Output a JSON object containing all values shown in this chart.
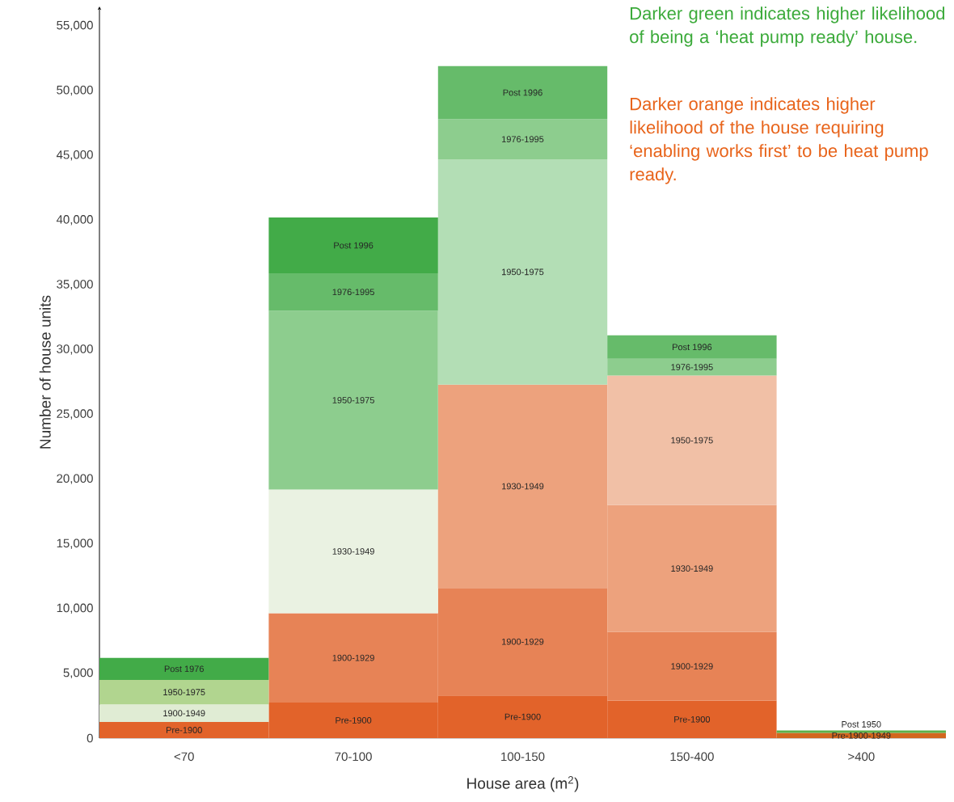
{
  "chart_data": {
    "type": "bar",
    "stacked": true,
    "xlabel": "House area (m$^{2}$)",
    "ylabel": "Number of house units",
    "categories": [
      "<70",
      "70-100",
      "100-150",
      "150-400",
      ">400"
    ],
    "ylim": [
      0,
      56500
    ],
    "yticks": [
      0,
      {
        "value": 5000,
        "label": "5,000"
      },
      {
        "value": 10000,
        "label": "10,000"
      },
      {
        "value": 15000,
        "label": "15,000"
      },
      {
        "value": 20000,
        "label": "20,000"
      },
      {
        "value": 25000,
        "label": "25,000"
      },
      {
        "value": 30000,
        "label": "30,000"
      },
      {
        "value": 35000,
        "label": "35,000"
      },
      {
        "value": 40000,
        "label": "40,000"
      },
      {
        "value": 45000,
        "label": "45,000"
      },
      {
        "value": 50000,
        "label": "50,000"
      },
      {
        "value": 55000,
        "label": "55,000"
      }
    ],
    "series": [
      {
        "values": [
          1250,
          2750,
          3300,
          2900,
          400
        ],
        "colors": [
          "#e2632a",
          "#e2632a",
          "#e2632a",
          "#e2632a",
          "#d2671e"
        ],
        "value_labels": [
          "Pre-1900",
          "Pre-1900",
          "Pre-1900",
          "Pre-1900",
          "Pre-1900-1949"
        ]
      },
      {
        "values": [
          1350,
          6900,
          8300,
          5300,
          200
        ],
        "colors": [
          "#e0ecd4",
          "#e78356",
          "#e78356",
          "#e78356",
          "#5cb04a"
        ],
        "value_labels": [
          "1900-1949",
          "1900-1929",
          "1900-1929",
          "1900-1929",
          "Post 1950"
        ]
      },
      {
        "values": [
          1900,
          9550,
          15700,
          9800,
          null
        ],
        "colors": [
          "#b1d58f",
          "#eaf2e2",
          "#eda27d",
          "#eda27d",
          null
        ],
        "value_labels": [
          "1950-1975",
          "1930-1949",
          "1930-1949",
          "1930-1949",
          null
        ]
      },
      {
        "values": [
          1700,
          13800,
          17400,
          10000,
          null
        ],
        "colors": [
          "#42ab48",
          "#8dcd8e",
          "#b3deb5",
          "#f1c0a6",
          null
        ],
        "value_labels": [
          "Post 1976",
          "1950-1975",
          "1950-1975",
          "1950-1975",
          null
        ]
      },
      {
        "values": [
          null,
          2900,
          3100,
          1300,
          null
        ],
        "colors": [
          null,
          "#66bb6a",
          "#8dcd8e",
          "#8dcd8e",
          null
        ],
        "value_labels": [
          null,
          "1976-1995",
          "1976-1995",
          "1976-1995",
          null
        ]
      },
      {
        "values": [
          null,
          4300,
          4100,
          1800,
          null
        ],
        "colors": [
          null,
          "#42ab48",
          "#66bb6a",
          "#66bb6a",
          null
        ],
        "value_labels": [
          null,
          "Post 1996",
          "Post 1996",
          "Post 1996",
          null
        ]
      }
    ],
    "annotations": [
      "Darker green indicates higher likelihood of being a ‘heat pump ready’ house.",
      "Darker orange indicates higher likelihood of the house requiring ‘enabling works first’ to be heat pump ready."
    ]
  }
}
